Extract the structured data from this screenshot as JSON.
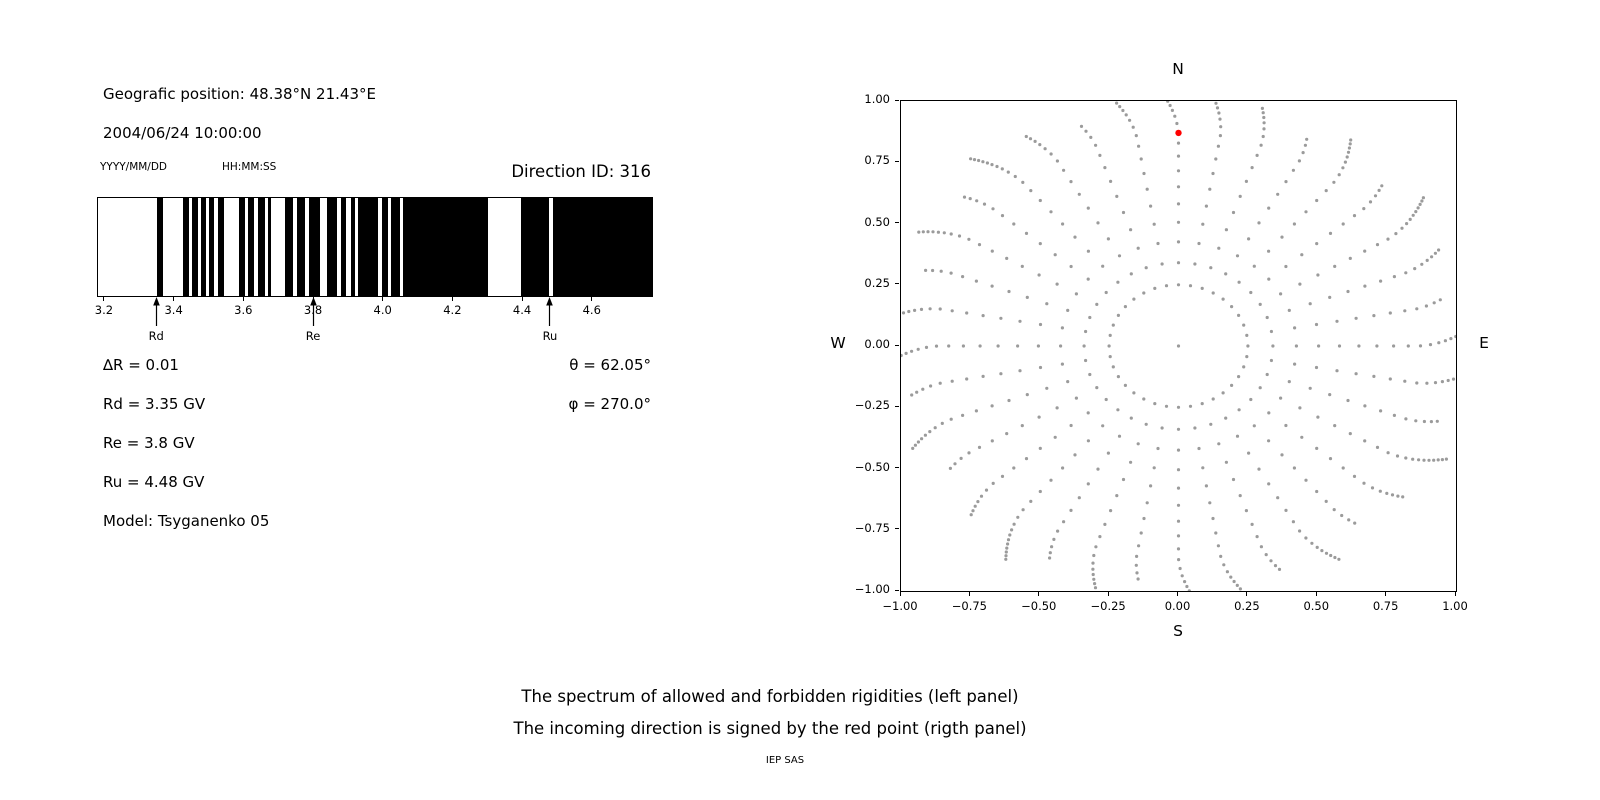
{
  "header": {
    "geographic_position": "Geografic position: 48.38°N 21.43°E",
    "datetime": "2004/06/24 10:00:00",
    "date_format_label": "YYYY/MM/DD",
    "time_format_label": "HH:MM:SS",
    "direction_id_label": "Direction ID: 316"
  },
  "left_panel": {
    "lines": [
      "∆R = 0.01",
      "Rd = 3.35 GV",
      "Re = 3.8 GV",
      "Ru = 4.48 GV",
      "Model: Tsyganenko 05"
    ],
    "angles": [
      "θ = 62.05°",
      "φ = 270.0°"
    ]
  },
  "captions": {
    "line1": "The spectrum of allowed and forbidden rigidities (left panel)",
    "line2": "The incoming direction is signed by the red point (rigth panel)",
    "credit": "IEP SAS"
  },
  "chart_data": [
    {
      "id": "rigidity-spectrum",
      "type": "heatmap",
      "subtype": "binary-barcode-spectrum",
      "title": "Direction ID: 316",
      "xlim": [
        3.18,
        4.77
      ],
      "xtick_values": [
        3.2,
        3.4,
        3.6,
        3.8,
        4.0,
        4.2,
        4.4,
        4.6
      ],
      "xtick_labels": [
        "3.2",
        "3.4",
        "3.6",
        "3.8",
        "4.0",
        "4.2",
        "4.4",
        "4.6"
      ],
      "band_color": "#000000",
      "background_color": "#ffffff",
      "black_bands_gv": [
        [
          3.35,
          3.368
        ],
        [
          3.425,
          3.441
        ],
        [
          3.451,
          3.466
        ],
        [
          3.476,
          3.49
        ],
        [
          3.5,
          3.513
        ],
        [
          3.523,
          3.543
        ],
        [
          3.585,
          3.603
        ],
        [
          3.61,
          3.628
        ],
        [
          3.638,
          3.66
        ],
        [
          3.667,
          3.677
        ],
        [
          3.716,
          3.741
        ],
        [
          3.751,
          3.774
        ],
        [
          3.786,
          3.817
        ],
        [
          3.837,
          3.867
        ],
        [
          3.877,
          3.891
        ],
        [
          3.906,
          3.917
        ],
        [
          3.927,
          3.985
        ],
        [
          3.995,
          4.012
        ],
        [
          4.022,
          4.048
        ],
        [
          4.056,
          4.3
        ],
        [
          4.395,
          4.474
        ],
        [
          4.486,
          4.77
        ]
      ],
      "markers": [
        {
          "label": "Rd",
          "rigidity_gv": 3.35
        },
        {
          "label": "Re",
          "rigidity_gv": 3.8
        },
        {
          "label": "Ru",
          "rigidity_gv": 4.48
        }
      ],
      "parameters": {
        "delta_R": 0.01,
        "Rd_GV": 3.35,
        "Re_GV": 3.8,
        "Ru_GV": 4.48,
        "theta_deg": 62.05,
        "phi_deg": 270.0,
        "model": "Tsyganenko 05"
      }
    },
    {
      "id": "incoming-direction-map",
      "type": "scatter",
      "xlim": [
        -1,
        1
      ],
      "ylim": [
        -1,
        1
      ],
      "grid": false,
      "xtick_values": [
        -1,
        -0.75,
        -0.5,
        -0.25,
        0,
        0.25,
        0.5,
        0.75,
        1
      ],
      "xtick_labels": [
        "−1.00",
        "−0.75",
        "−0.50",
        "−0.25",
        "0.00",
        "0.25",
        "0.50",
        "0.75",
        "1.00"
      ],
      "ytick_values": [
        1,
        0.75,
        0.5,
        0.25,
        0,
        -0.25,
        -0.5,
        -0.75,
        -1
      ],
      "ytick_labels": [
        "1.00",
        "0.75",
        "0.50",
        "0.25",
        "0.00",
        "−0.25",
        "−0.50",
        "−0.75",
        "−1.00"
      ],
      "compass": {
        "top": "N",
        "bottom": "S",
        "left": "W",
        "right": "E"
      },
      "dot_color": "#9b9b9b",
      "red_point": {
        "x": 0.0,
        "y": 0.87,
        "color": "#ff0000"
      },
      "spoke_pattern": {
        "n_spokes": 36,
        "angle_step_deg": 10,
        "inner_ring_radius": 0.25,
        "radii": [
          0.25,
          0.34,
          0.425,
          0.505,
          0.58,
          0.65,
          0.715,
          0.775,
          0.828,
          0.872,
          0.908,
          0.938,
          0.962,
          0.982,
          1.0,
          1.016,
          1.031,
          1.045,
          1.058,
          1.07
        ],
        "hook_start_radius": 0.86,
        "hook_coefficient": 1.1,
        "hook_exponent": 1.7,
        "center_dot": true
      }
    }
  ]
}
